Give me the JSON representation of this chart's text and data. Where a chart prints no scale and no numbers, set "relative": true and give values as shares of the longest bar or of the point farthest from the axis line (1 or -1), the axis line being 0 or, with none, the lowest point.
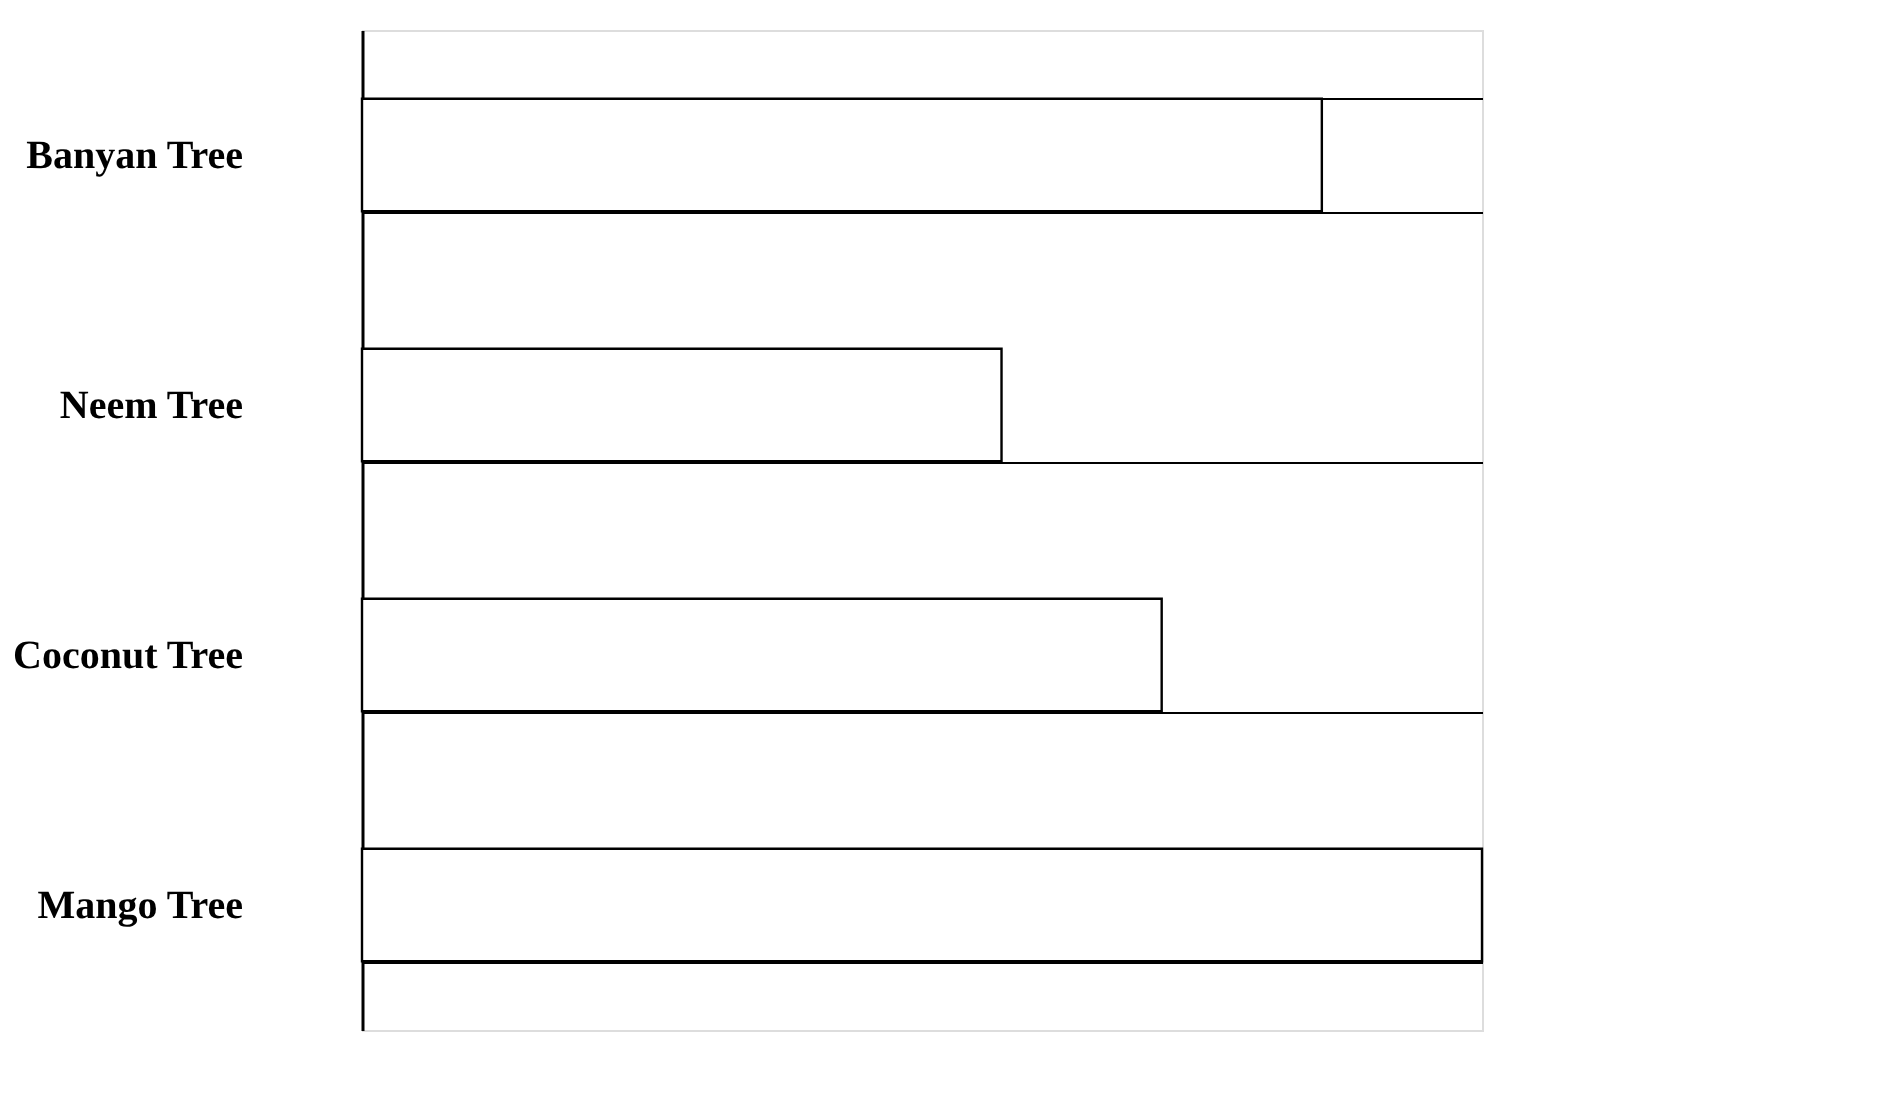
{
  "chart_data": {
    "type": "bar",
    "orientation": "horizontal",
    "relative": true,
    "categories": [
      "Banyan Tree",
      "Neem Tree",
      "Coconut Tree",
      "Mango Tree"
    ],
    "values": [
      0.857,
      0.571,
      0.714,
      1
    ],
    "color": "#ffffff",
    "grid": "y"
  }
}
